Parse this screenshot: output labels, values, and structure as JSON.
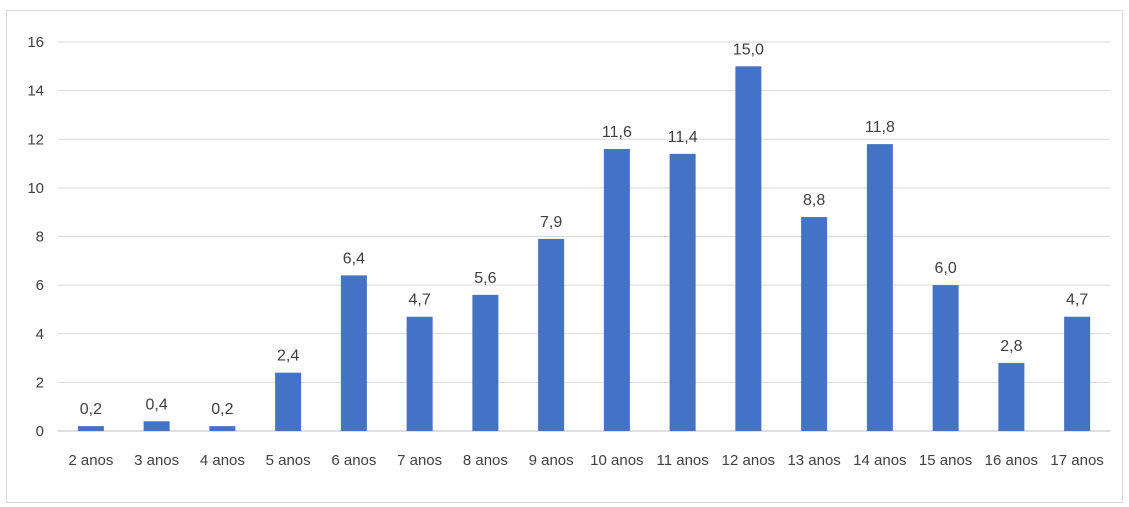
{
  "chart_data": {
    "type": "bar",
    "categories": [
      "2 anos",
      "3 anos",
      "4 anos",
      "5 anos",
      "6 anos",
      "7 anos",
      "8 anos",
      "9 anos",
      "10 anos",
      "11 anos",
      "12 anos",
      "13 anos",
      "14 anos",
      "15 anos",
      "16 anos",
      "17 anos"
    ],
    "values": [
      0.2,
      0.4,
      0.2,
      2.4,
      6.4,
      4.7,
      5.6,
      7.9,
      11.6,
      11.4,
      15.0,
      8.8,
      11.8,
      6.0,
      2.8,
      4.7
    ],
    "data_labels": [
      "0,2",
      "0,4",
      "0,2",
      "2,4",
      "6,4",
      "4,7",
      "5,6",
      "7,9",
      "11,6",
      "11,4",
      "15,0",
      "8,8",
      "11,8",
      "6,0",
      "2,8",
      "4,7"
    ],
    "y_ticks": [
      0,
      2,
      4,
      6,
      8,
      10,
      12,
      14,
      16
    ],
    "ylim": [
      0,
      16
    ],
    "grid": true,
    "legend": "none",
    "title": "",
    "xlabel": "",
    "ylabel": "",
    "colors": {
      "bar": "#4472c4",
      "grid": "#d9d9d9",
      "axis": "#bfbfbf",
      "text": "#404040"
    }
  }
}
